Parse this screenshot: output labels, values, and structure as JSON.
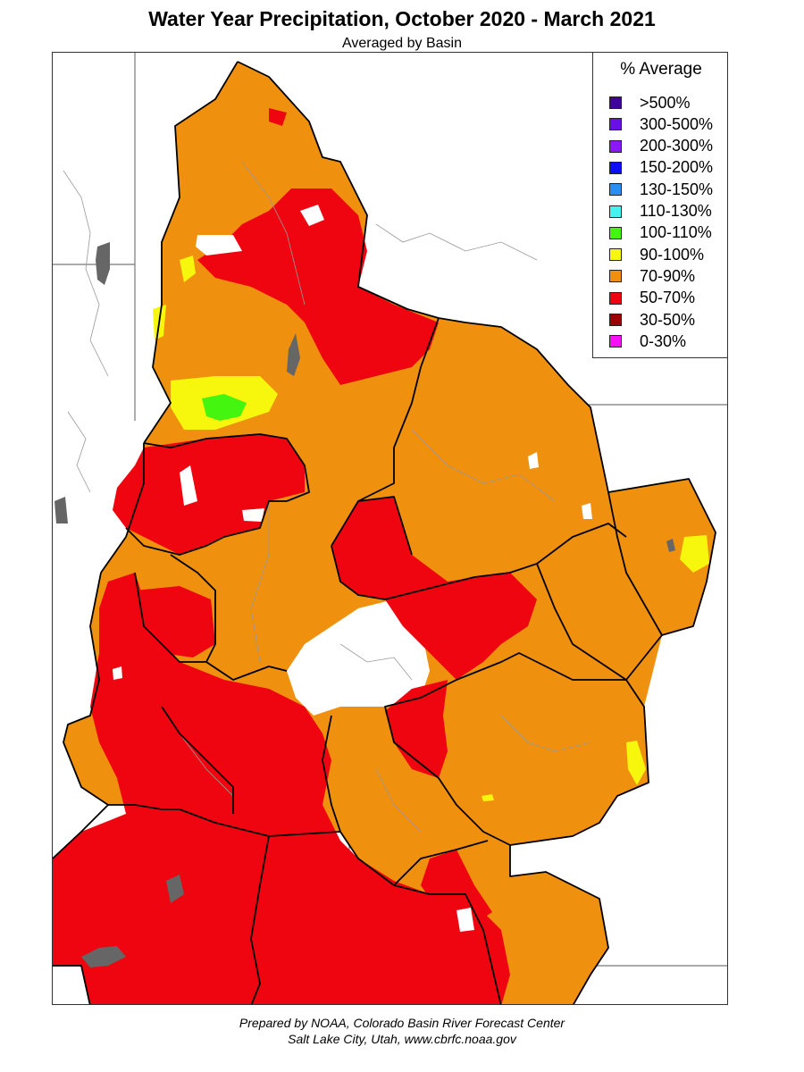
{
  "title": "Water Year Precipitation, October 2020 - March 2021",
  "subtitle": "Averaged by Basin",
  "legend": {
    "title": "% Average",
    "items": [
      {
        "label": ">500%",
        "color": "#3f0399"
      },
      {
        "label": "300-500%",
        "color": "#6a0fe6"
      },
      {
        "label": "200-300%",
        "color": "#8c17f7"
      },
      {
        "label": "150-200%",
        "color": "#0d0df7"
      },
      {
        "label": "130-150%",
        "color": "#2b8ff2"
      },
      {
        "label": "110-130%",
        "color": "#45f2f2"
      },
      {
        "label": "100-110%",
        "color": "#43f50f"
      },
      {
        "label": "90-100%",
        "color": "#f7f70d"
      },
      {
        "label": "70-90%",
        "color": "#f0900f"
      },
      {
        "label": "50-70%",
        "color": "#ee0510"
      },
      {
        "label": "30-50%",
        "color": "#9c0000"
      },
      {
        "label": "0-30%",
        "color": "#f70ff7"
      }
    ]
  },
  "credits": {
    "line1": "Prepared by NOAA, Colorado Basin River Forecast Center",
    "line2": "Salt Lake City, Utah, www.cbrfc.noaa.gov"
  },
  "map": {
    "colors": {
      "orange": "#f0900f",
      "red": "#ee0510",
      "yellow": "#f7f70d",
      "green": "#43f50f",
      "lake": "#666666",
      "border": "#000000",
      "state": "#777777",
      "river": "#888888"
    }
  }
}
